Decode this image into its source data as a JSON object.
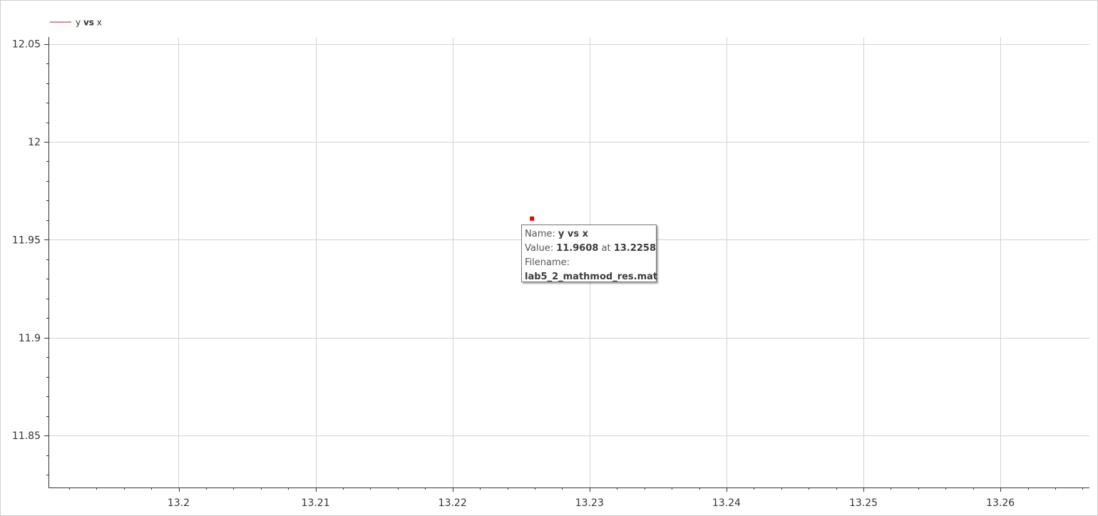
{
  "legend": {
    "entries": [
      {
        "label_left": "y",
        "label_bold": "vs",
        "label_right": "x",
        "color": "#b22222"
      }
    ]
  },
  "tooltip": {
    "name_label": "Name:",
    "name_value": "y vs x",
    "value_label": "Value:",
    "value_y": "11.9608",
    "value_at": "at",
    "value_x": "13.2258",
    "filename_label": "Filename:",
    "filename_value": "lab5_2_mathmod_res.mat"
  },
  "chart_data": {
    "type": "scatter",
    "series": [
      {
        "name": "y vs x",
        "color": "#ee0000",
        "points": [
          {
            "x": 13.2258,
            "y": 11.9608
          }
        ]
      }
    ],
    "xlim": [
      13.1905,
      13.2665
    ],
    "ylim": [
      11.8235,
      12.0535
    ],
    "x_ticks": [
      13.2,
      13.21,
      13.22,
      13.23,
      13.24,
      13.25,
      13.26
    ],
    "x_tick_labels": [
      "13.2",
      "13.21",
      "13.22",
      "13.23",
      "13.24",
      "13.25",
      "13.26"
    ],
    "x_minor_step": 0.002,
    "y_ticks": [
      11.85,
      11.9,
      11.95,
      12.0,
      12.05
    ],
    "y_tick_labels": [
      "11.85",
      "11.9",
      "11.95",
      "12",
      "12.05"
    ],
    "y_minor_step": 0.01,
    "grid": true,
    "gridColor": "#d3d3d3",
    "legend_position": "top-left",
    "title": "",
    "xlabel": "",
    "ylabel": ""
  }
}
